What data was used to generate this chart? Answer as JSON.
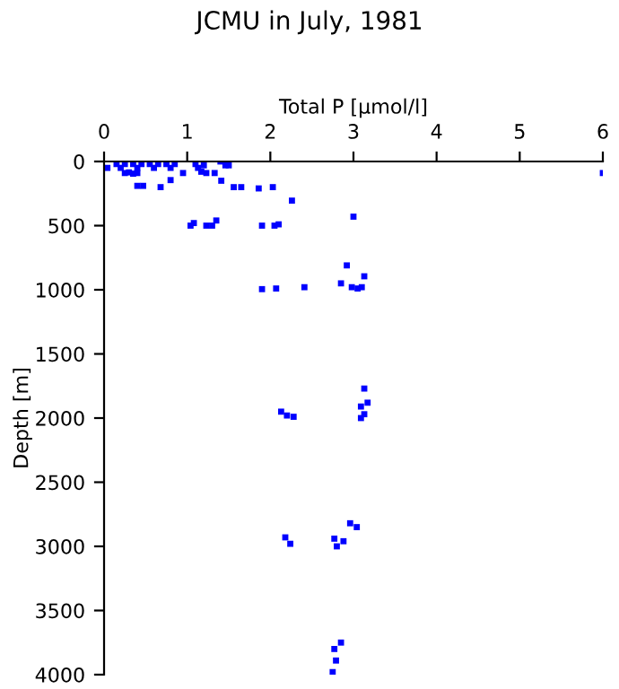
{
  "chart_data": {
    "type": "scatter",
    "title": "JCMU in July, 1981",
    "xlabel": "Total P [µmol/l]",
    "ylabel": "Depth [m]",
    "series": [
      {
        "color": "#0000ff",
        "x": [
          0.04,
          0.15,
          0.25,
          0.35,
          0.45,
          0.55,
          0.65,
          0.75,
          0.85,
          0.2,
          0.4,
          0.6,
          0.8,
          0.25,
          0.3,
          0.35,
          0.4,
          0.4,
          0.47,
          0.68,
          0.8,
          0.95,
          1.1,
          1.13,
          1.17,
          1.2,
          1.23,
          1.33,
          1.4,
          1.46,
          1.41,
          1.5,
          1.56,
          1.65,
          1.86,
          2.03,
          2.26,
          6.0,
          3.0,
          1.04,
          1.08,
          1.23,
          1.3,
          1.35,
          1.9,
          2.05,
          2.1,
          2.92,
          3.13,
          1.9,
          2.07,
          2.41,
          2.85,
          2.98,
          3.05,
          3.1,
          3.13,
          3.17,
          3.09,
          3.13,
          3.09,
          2.13,
          2.2,
          2.28,
          2.18,
          2.24,
          2.96,
          3.04,
          2.77,
          2.8,
          2.88,
          2.85,
          2.77,
          2.79,
          2.75
        ],
        "values": [
          50,
          20,
          20,
          20,
          20,
          20,
          20,
          20,
          20,
          50,
          50,
          50,
          50,
          90,
          85,
          95,
          90,
          190,
          190,
          200,
          145,
          90,
          20,
          50,
          80,
          30,
          90,
          90,
          0,
          30,
          150,
          30,
          200,
          200,
          210,
          200,
          305,
          90,
          430,
          500,
          480,
          500,
          500,
          460,
          500,
          500,
          490,
          810,
          895,
          995,
          990,
          980,
          950,
          980,
          990,
          980,
          1770,
          1880,
          1910,
          1970,
          2000,
          1950,
          1980,
          1990,
          2930,
          2980,
          2820,
          2850,
          2940,
          3000,
          2960,
          3750,
          3800,
          3890,
          3980
        ]
      }
    ],
    "xlim": [
      0,
      6
    ],
    "xticks": [
      0,
      1,
      2,
      3,
      4,
      5,
      6
    ],
    "ylim": [
      4000,
      0
    ],
    "yticks": [
      0,
      500,
      1000,
      1500,
      2000,
      2500,
      3000,
      3500,
      4000
    ],
    "marker": "square",
    "grid": false,
    "legend": false
  }
}
